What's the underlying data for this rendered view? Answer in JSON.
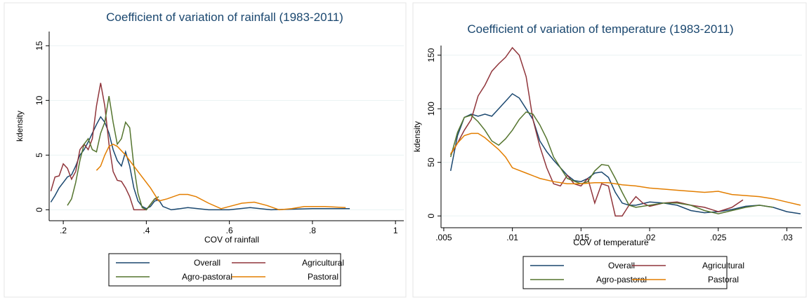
{
  "chart_data": [
    {
      "type": "line",
      "title": "Coefficient of variation of rainfall (1983-2011)",
      "x_label": "COV of rainfall",
      "y_label": "kdensity",
      "xlim": [
        0.166,
        1.02
      ],
      "ylim": [
        -1,
        16.3
      ],
      "xticks": [
        {
          "value": 0.2,
          "label": ".2"
        },
        {
          "value": 0.4,
          "label": ".4"
        },
        {
          "value": 0.6,
          "label": ".6"
        },
        {
          "value": 0.8,
          "label": ".8"
        },
        1
      ],
      "yticks": [
        0,
        5,
        10,
        15
      ],
      "grid": true,
      "legend": "bottom",
      "series": [
        {
          "name": "Overall",
          "color": "#1a476f",
          "x": [
            0.17,
            0.18,
            0.19,
            0.2,
            0.21,
            0.22,
            0.23,
            0.24,
            0.25,
            0.26,
            0.27,
            0.28,
            0.29,
            0.3,
            0.31,
            0.32,
            0.33,
            0.34,
            0.35,
            0.36,
            0.37,
            0.38,
            0.39,
            0.4,
            0.41,
            0.42,
            0.43,
            0.44,
            0.46,
            0.5,
            0.55,
            0.6,
            0.65,
            0.7,
            0.8,
            0.89
          ],
          "values": [
            0.7,
            1.3,
            2,
            2.5,
            3,
            3.2,
            4,
            5,
            5.5,
            6.2,
            7,
            7.8,
            8.5,
            8,
            7,
            5.5,
            4.5,
            4,
            5.3,
            4,
            2,
            0.8,
            0.3,
            0.1,
            0.3,
            0.8,
            0.9,
            0.3,
            0,
            0.2,
            0,
            0,
            0.2,
            0,
            0.1,
            0.1
          ]
        },
        {
          "name": "Agricultural",
          "color": "#90353b",
          "x": [
            0.17,
            0.18,
            0.19,
            0.2,
            0.21,
            0.22,
            0.23,
            0.24,
            0.25,
            0.26,
            0.27,
            0.28,
            0.29,
            0.3,
            0.31,
            0.32,
            0.33,
            0.34,
            0.35,
            0.36,
            0.37,
            0.4,
            0.42,
            0.43
          ],
          "values": [
            1.7,
            3,
            3.1,
            4.2,
            3.8,
            2.8,
            3.5,
            5.5,
            6,
            5.5,
            6.5,
            9.5,
            11.6,
            9.5,
            6,
            3.5,
            2.7,
            2.6,
            2,
            1.2,
            0,
            0,
            1,
            0.9
          ]
        },
        {
          "name": "Agro-pastoral",
          "color": "#55752f",
          "x": [
            0.21,
            0.22,
            0.23,
            0.24,
            0.25,
            0.26,
            0.27,
            0.28,
            0.29,
            0.3,
            0.31,
            0.32,
            0.33,
            0.34,
            0.35,
            0.36,
            0.37,
            0.38,
            0.39,
            0.4,
            0.41,
            0.42,
            0.43
          ],
          "values": [
            0.4,
            1,
            2.5,
            4.5,
            6,
            6.5,
            5.5,
            5.3,
            7,
            8,
            10.4,
            8,
            6,
            6.5,
            8,
            7.5,
            4,
            1.5,
            0.2,
            0,
            0.5,
            1,
            1.2
          ]
        },
        {
          "name": "Pastoral",
          "color": "#e37e00",
          "x": [
            0.28,
            0.29,
            0.3,
            0.31,
            0.32,
            0.33,
            0.35,
            0.38,
            0.41,
            0.43,
            0.45,
            0.48,
            0.5,
            0.52,
            0.55,
            0.58,
            0.6,
            0.63,
            0.66,
            0.69,
            0.72,
            0.75,
            0.78,
            0.83,
            0.88
          ],
          "values": [
            3.6,
            4,
            5,
            5.8,
            6,
            5.8,
            5,
            3.5,
            2,
            0.8,
            1,
            1.4,
            1.4,
            1.2,
            0.6,
            0.1,
            0.3,
            0.6,
            0.7,
            0.4,
            0,
            0.1,
            0.3,
            0.3,
            0.2
          ]
        }
      ]
    },
    {
      "type": "line",
      "title": "Coefficient of variation of temperature (1983-2011)",
      "x_label": "COV of temperature",
      "y_label": "kdensity",
      "xlim": [
        0.0048,
        0.0311
      ],
      "ylim": [
        -11,
        159
      ],
      "xticks": [
        {
          "value": 0.005,
          "label": ".005"
        },
        {
          "value": 0.01,
          "label": ".01"
        },
        {
          "value": 0.015,
          "label": ".015"
        },
        {
          "value": 0.02,
          "label": ".02"
        },
        {
          "value": 0.025,
          "label": ".025"
        },
        {
          "value": 0.03,
          "label": ".03"
        }
      ],
      "yticks": [
        0,
        50,
        100,
        150
      ],
      "grid": true,
      "legend": "bottom",
      "series": [
        {
          "name": "Overall",
          "color": "#1a476f",
          "x": [
            0.0055,
            0.006,
            0.0065,
            0.007,
            0.0075,
            0.008,
            0.0085,
            0.009,
            0.0095,
            0.01,
            0.0105,
            0.011,
            0.0115,
            0.012,
            0.0125,
            0.013,
            0.0135,
            0.014,
            0.0145,
            0.015,
            0.0155,
            0.016,
            0.0165,
            0.017,
            0.0175,
            0.018,
            0.0185,
            0.019,
            0.02,
            0.021,
            0.022,
            0.023,
            0.024,
            0.025,
            0.026,
            0.027,
            0.028,
            0.029,
            0.03,
            0.031
          ],
          "values": [
            42,
            75,
            92,
            95,
            93,
            95,
            93,
            100,
            107,
            114,
            110,
            100,
            90,
            70,
            60,
            52,
            45,
            38,
            33,
            32,
            35,
            40,
            41,
            36,
            22,
            12,
            10,
            10,
            13,
            12,
            10,
            5,
            3,
            4,
            6,
            9,
            10,
            8,
            4,
            2
          ]
        },
        {
          "name": "Agricultural",
          "color": "#90353b",
          "x": [
            0.0055,
            0.006,
            0.0065,
            0.007,
            0.0075,
            0.008,
            0.0085,
            0.009,
            0.0095,
            0.01,
            0.0105,
            0.011,
            0.0115,
            0.012,
            0.0125,
            0.013,
            0.0135,
            0.014,
            0.0145,
            0.015,
            0.0155,
            0.016,
            0.0165,
            0.017,
            0.0175,
            0.018,
            0.0185,
            0.019,
            0.0195,
            0.02,
            0.021,
            0.022,
            0.023,
            0.024,
            0.025,
            0.026,
            0.0268
          ],
          "values": [
            57,
            68,
            80,
            90,
            112,
            122,
            135,
            142,
            148,
            157,
            150,
            130,
            90,
            65,
            45,
            30,
            28,
            38,
            30,
            28,
            35,
            12,
            30,
            28,
            0,
            0,
            10,
            18,
            12,
            9,
            12,
            13,
            10,
            8,
            4,
            8,
            15
          ]
        },
        {
          "name": "Agro-pastoral",
          "color": "#55752f",
          "x": [
            0.0055,
            0.006,
            0.0065,
            0.007,
            0.0075,
            0.008,
            0.0085,
            0.009,
            0.0095,
            0.01,
            0.0105,
            0.011,
            0.0115,
            0.012,
            0.0125,
            0.013,
            0.0135,
            0.014,
            0.015,
            0.0155,
            0.016,
            0.0165,
            0.017,
            0.0175,
            0.018,
            0.0185,
            0.019,
            0.02,
            0.021,
            0.022,
            0.023,
            0.024,
            0.025,
            0.026,
            0.027,
            0.028,
            0.029
          ],
          "values": [
            55,
            78,
            92,
            94,
            88,
            80,
            70,
            66,
            72,
            80,
            90,
            97,
            95,
            85,
            72,
            55,
            45,
            35,
            30,
            32,
            42,
            48,
            47,
            35,
            22,
            10,
            8,
            10,
            12,
            12,
            10,
            5,
            2,
            5,
            8,
            10,
            8
          ]
        },
        {
          "name": "Pastoral",
          "color": "#e37e00",
          "x": [
            0.0055,
            0.006,
            0.0065,
            0.007,
            0.0075,
            0.008,
            0.009,
            0.0095,
            0.01,
            0.011,
            0.012,
            0.013,
            0.014,
            0.015,
            0.016,
            0.017,
            0.018,
            0.019,
            0.02,
            0.021,
            0.022,
            0.023,
            0.024,
            0.025,
            0.026,
            0.027,
            0.028,
            0.029,
            0.03,
            0.031
          ],
          "values": [
            58,
            68,
            75,
            77,
            77,
            73,
            62,
            55,
            45,
            40,
            35,
            32,
            30,
            30,
            31,
            31,
            29,
            28,
            26,
            25,
            24,
            23,
            22,
            23,
            20,
            19,
            18,
            16,
            13,
            10
          ]
        }
      ]
    }
  ]
}
